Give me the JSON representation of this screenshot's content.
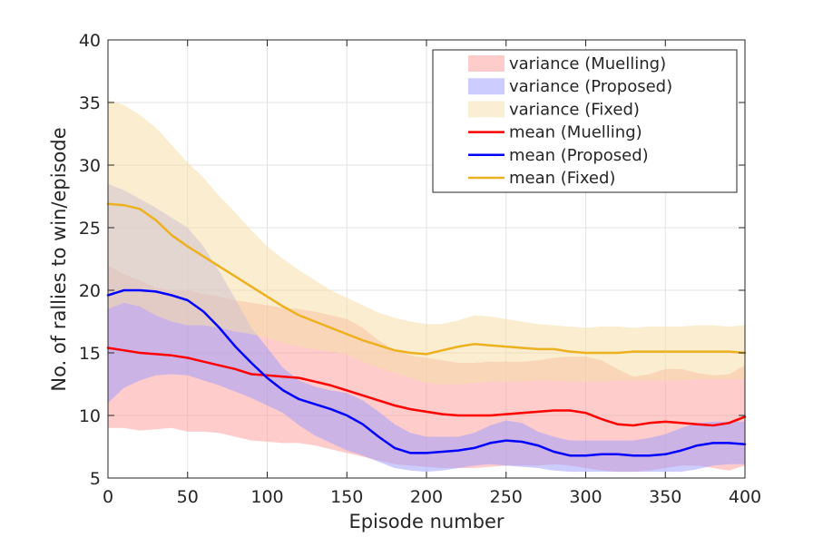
{
  "chart_data": {
    "type": "area",
    "title": "",
    "xlabel": "Episode number",
    "ylabel": "No. of rallies to win/episode",
    "xlim": [
      0,
      400
    ],
    "ylim": [
      5,
      40
    ],
    "xticks": [
      0,
      50,
      100,
      150,
      200,
      250,
      300,
      350,
      400
    ],
    "yticks": [
      5,
      10,
      15,
      20,
      25,
      30,
      35,
      40
    ],
    "grid": true,
    "legend_position": "top-right",
    "x": [
      0,
      10,
      20,
      30,
      40,
      50,
      60,
      70,
      80,
      90,
      100,
      110,
      120,
      130,
      140,
      150,
      160,
      170,
      180,
      190,
      200,
      210,
      220,
      230,
      240,
      250,
      260,
      270,
      280,
      290,
      300,
      310,
      320,
      330,
      340,
      350,
      360,
      370,
      380,
      390,
      400
    ],
    "bands": [
      {
        "name": "variance (Muelling)",
        "color": "#ff9999",
        "opacity": 0.5,
        "upper": [
          22.0,
          21.3,
          20.8,
          20.2,
          20.0,
          20.0,
          19.7,
          19.5,
          19.2,
          19.0,
          18.8,
          18.6,
          18.5,
          18.3,
          18.0,
          17.7,
          17.0,
          16.0,
          15.2,
          14.8,
          14.6,
          14.4,
          14.2,
          14.2,
          14.3,
          14.3,
          14.3,
          14.4,
          14.6,
          14.7,
          14.7,
          14.4,
          13.7,
          13.1,
          13.3,
          13.7,
          13.7,
          13.4,
          13.2,
          13.3,
          14.0
        ],
        "lower": [
          9.0,
          9.0,
          8.8,
          8.9,
          9.0,
          8.7,
          8.7,
          8.6,
          8.3,
          8.0,
          7.9,
          7.8,
          7.8,
          7.6,
          7.3,
          7.0,
          6.7,
          6.4,
          6.1,
          6.0,
          5.9,
          5.8,
          5.8,
          5.8,
          5.9,
          6.0,
          6.0,
          6.0,
          6.1,
          6.0,
          5.8,
          5.6,
          5.5,
          5.5,
          5.6,
          5.8,
          6.0,
          6.0,
          5.8,
          5.6,
          6.0
        ]
      },
      {
        "name": "variance (Proposed)",
        "color": "#9999ff",
        "opacity": 0.5,
        "upper": [
          28.5,
          28.0,
          27.3,
          26.6,
          25.8,
          25.0,
          23.5,
          21.5,
          19.3,
          17.0,
          15.4,
          13.8,
          12.8,
          12.3,
          12.0,
          11.8,
          11.2,
          10.3,
          9.3,
          8.6,
          8.3,
          8.3,
          8.3,
          8.6,
          9.2,
          9.6,
          9.4,
          8.7,
          8.3,
          8.0,
          8.0,
          8.0,
          8.0,
          8.0,
          8.2,
          8.5,
          9.0,
          9.4,
          9.5,
          9.5,
          9.5
        ],
        "lower": [
          11.0,
          12.2,
          12.8,
          13.2,
          13.3,
          13.2,
          12.8,
          12.4,
          11.9,
          11.4,
          10.8,
          10.2,
          9.2,
          8.4,
          7.8,
          7.2,
          6.8,
          6.3,
          5.8,
          5.6,
          5.5,
          5.6,
          5.8,
          6.0,
          6.1,
          6.0,
          5.9,
          5.8,
          5.6,
          5.5,
          5.5,
          5.5,
          5.5,
          5.5,
          5.5,
          5.5,
          5.5,
          5.7,
          6.0,
          6.1,
          6.1
        ]
      },
      {
        "name": "variance (Fixed)",
        "color": "#f5deaa",
        "opacity": 0.55,
        "upper": [
          35.2,
          34.8,
          34.0,
          33.0,
          31.6,
          30.2,
          29.0,
          27.5,
          26.2,
          24.8,
          23.5,
          22.5,
          21.6,
          20.8,
          20.0,
          19.4,
          18.8,
          18.2,
          17.8,
          17.5,
          17.3,
          17.3,
          17.6,
          18.0,
          17.9,
          17.7,
          17.5,
          17.3,
          17.2,
          17.1,
          17.0,
          17.1,
          17.1,
          17.0,
          17.1,
          17.1,
          17.1,
          17.2,
          17.2,
          17.1,
          17.2
        ],
        "lower": [
          18.5,
          19.0,
          18.7,
          18.0,
          17.5,
          17.2,
          17.2,
          17.0,
          16.7,
          16.5,
          16.2,
          15.8,
          15.5,
          15.3,
          15.1,
          14.9,
          14.3,
          13.8,
          13.4,
          13.0,
          12.6,
          12.5,
          12.5,
          12.6,
          12.7,
          12.7,
          12.7,
          12.8,
          12.8,
          12.7,
          12.7,
          12.7,
          12.8,
          12.8,
          12.8,
          12.8,
          12.8,
          12.9,
          12.9,
          12.9,
          12.9
        ]
      }
    ],
    "series": [
      {
        "name": "mean (Muelling)",
        "color": "#ff0000",
        "values": [
          15.4,
          15.2,
          15.0,
          14.9,
          14.8,
          14.6,
          14.3,
          14.0,
          13.7,
          13.3,
          13.2,
          13.1,
          13.0,
          12.7,
          12.4,
          12.0,
          11.6,
          11.2,
          10.8,
          10.5,
          10.3,
          10.1,
          10.0,
          10.0,
          10.0,
          10.1,
          10.2,
          10.3,
          10.4,
          10.4,
          10.2,
          9.7,
          9.3,
          9.2,
          9.4,
          9.5,
          9.4,
          9.3,
          9.2,
          9.4,
          9.9
        ]
      },
      {
        "name": "mean (Proposed)",
        "color": "#0000ff",
        "values": [
          19.6,
          20.0,
          20.0,
          19.9,
          19.6,
          19.2,
          18.3,
          17.0,
          15.5,
          14.2,
          13.0,
          12.0,
          11.3,
          10.9,
          10.5,
          10.0,
          9.3,
          8.3,
          7.4,
          7.0,
          7.0,
          7.1,
          7.2,
          7.4,
          7.8,
          8.0,
          7.9,
          7.6,
          7.1,
          6.8,
          6.8,
          6.9,
          6.9,
          6.8,
          6.8,
          6.9,
          7.2,
          7.6,
          7.8,
          7.8,
          7.7
        ]
      },
      {
        "name": "mean (Fixed)",
        "color": "#edb120",
        "values": [
          26.9,
          26.8,
          26.5,
          25.6,
          24.4,
          23.5,
          22.7,
          21.9,
          21.1,
          20.3,
          19.5,
          18.7,
          18.0,
          17.5,
          17.0,
          16.5,
          16.0,
          15.6,
          15.2,
          15.0,
          14.9,
          15.2,
          15.5,
          15.7,
          15.6,
          15.5,
          15.4,
          15.3,
          15.3,
          15.1,
          15.0,
          15.0,
          15.0,
          15.1,
          15.1,
          15.1,
          15.1,
          15.1,
          15.1,
          15.1,
          15.0
        ]
      }
    ],
    "legend": [
      {
        "label": "variance (Muelling)",
        "kind": "patch",
        "color": "#ff9999"
      },
      {
        "label": "variance (Proposed)",
        "kind": "patch",
        "color": "#9999ff"
      },
      {
        "label": "variance (Fixed)",
        "kind": "patch",
        "color": "#f5deaa"
      },
      {
        "label": "mean (Muelling)",
        "kind": "line",
        "color": "#ff0000"
      },
      {
        "label": "mean (Proposed)",
        "kind": "line",
        "color": "#0000ff"
      },
      {
        "label": "mean (Fixed)",
        "kind": "line",
        "color": "#edb120"
      }
    ]
  }
}
